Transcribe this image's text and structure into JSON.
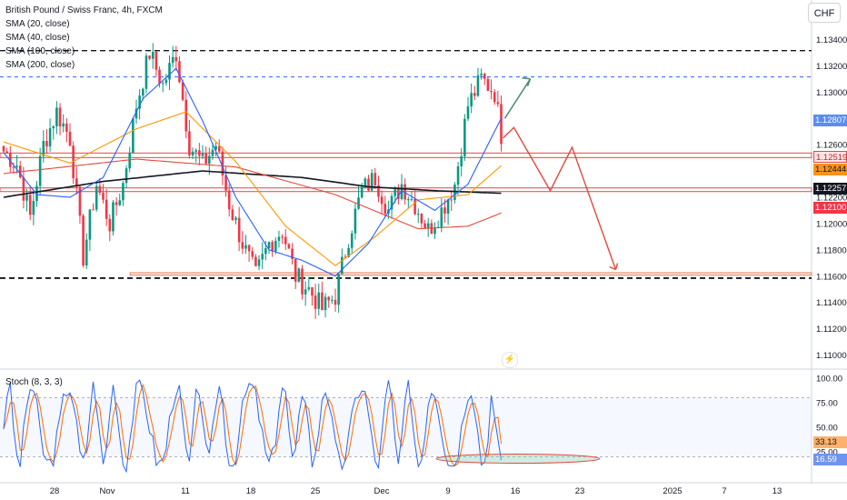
{
  "header": {
    "symbol_line": "British Pound / Swiss Franc, 4h, FXCM",
    "indicators": [
      "SMA (20, close)",
      "SMA (40, close)",
      "SMA (100, close)",
      "SMA (200, close)"
    ],
    "currency_button": "CHF"
  },
  "stoch_title": "Stoch (8, 3, 3)",
  "tags": {
    "t1": "1.12807",
    "t2": "1.12519",
    "t3": "1.12444",
    "t4": "1.12257",
    "t5": "1.12100",
    "s1": "33.13",
    "s2": "16.59"
  },
  "colors": {
    "up": "#089981",
    "down": "#f23645",
    "sma20": "#2962ff",
    "sma40": "#ff9800",
    "sma100": "#e04a3f",
    "sma200": "#131722",
    "stoch_k": "#2962ff",
    "stoch_d": "#ff6d00",
    "arrow_green": "#4e8a6e",
    "arrow_red": "#e04a3f"
  },
  "chart_data": [
    {
      "type": "candlestick",
      "title": "British Pound / Swiss Franc, 4h, FXCM",
      "ylim": [
        1.109,
        1.137
      ],
      "y_ticks": [
        "1.13400",
        "1.13200",
        "1.13000",
        "1.12600",
        "1.12200",
        "1.12000",
        "1.11800",
        "1.11600",
        "1.11400",
        "1.11200",
        "1.11000"
      ],
      "x_ticks": [
        "28",
        "Nov",
        "11",
        "18",
        "25",
        "Dec",
        "9",
        "16",
        "23",
        "2025",
        "7",
        "13"
      ],
      "close_anchors": [
        [
          0,
          1.1255
        ],
        [
          4,
          1.1245
        ],
        [
          8,
          1.1205
        ],
        [
          12,
          1.126
        ],
        [
          16,
          1.1285
        ],
        [
          20,
          1.1265
        ],
        [
          24,
          1.1175
        ],
        [
          28,
          1.123
        ],
        [
          32,
          1.12
        ],
        [
          36,
          1.123
        ],
        [
          40,
          1.129
        ],
        [
          44,
          1.133
        ],
        [
          48,
          1.1305
        ],
        [
          52,
          1.133
        ],
        [
          56,
          1.126
        ],
        [
          60,
          1.1245
        ],
        [
          64,
          1.126
        ],
        [
          68,
          1.1215
        ],
        [
          72,
          1.1185
        ],
        [
          76,
          1.116
        ],
        [
          80,
          1.1185
        ],
        [
          84,
          1.1195
        ],
        [
          88,
          1.116
        ],
        [
          92,
          1.115
        ],
        [
          96,
          1.1135
        ],
        [
          100,
          1.1145
        ],
        [
          104,
          1.119
        ],
        [
          108,
          1.1225
        ],
        [
          112,
          1.1235
        ],
        [
          116,
          1.121
        ],
        [
          120,
          1.123
        ],
        [
          124,
          1.1215
        ],
        [
          128,
          1.1195
        ],
        [
          132,
          1.121
        ],
        [
          136,
          1.123
        ],
        [
          140,
          1.129
        ],
        [
          144,
          1.131
        ],
        [
          148,
          1.13
        ],
        [
          150,
          1.1268
        ]
      ],
      "sma200_anchors": [
        [
          0,
          1.122
        ],
        [
          30,
          1.1232
        ],
        [
          60,
          1.124
        ],
        [
          90,
          1.1235
        ],
        [
          110,
          1.1228
        ],
        [
          130,
          1.1225
        ],
        [
          150,
          1.1223
        ]
      ],
      "sma100_anchors": [
        [
          0,
          1.1238
        ],
        [
          40,
          1.1249
        ],
        [
          70,
          1.1243
        ],
        [
          100,
          1.1222
        ],
        [
          125,
          1.1196
        ],
        [
          140,
          1.1198
        ],
        [
          150,
          1.1208
        ]
      ],
      "sma40_anchors": [
        [
          0,
          1.1262
        ],
        [
          20,
          1.1246
        ],
        [
          40,
          1.1272
        ],
        [
          55,
          1.1285
        ],
        [
          70,
          1.1247
        ],
        [
          85,
          1.1198
        ],
        [
          100,
          1.1168
        ],
        [
          112,
          1.119
        ],
        [
          125,
          1.1218
        ],
        [
          140,
          1.1222
        ],
        [
          150,
          1.1244
        ]
      ],
      "sma20_anchors": [
        [
          0,
          1.1254
        ],
        [
          10,
          1.1222
        ],
        [
          20,
          1.122
        ],
        [
          30,
          1.1235
        ],
        [
          42,
          1.1295
        ],
        [
          52,
          1.1318
        ],
        [
          60,
          1.1278
        ],
        [
          70,
          1.122
        ],
        [
          80,
          1.118
        ],
        [
          90,
          1.1172
        ],
        [
          100,
          1.116
        ],
        [
          110,
          1.1185
        ],
        [
          120,
          1.1225
        ],
        [
          130,
          1.121
        ],
        [
          140,
          1.123
        ],
        [
          145,
          1.1255
        ],
        [
          150,
          1.128
        ]
      ],
      "horizontal_levels": [
        1.13315,
        1.13115,
        1.12519,
        1.12257,
        1.11585
      ],
      "stoch_ylim": [
        0,
        100
      ],
      "stoch_ticks": [
        "100.00",
        "75.00",
        "50.00",
        "25.00"
      ],
      "stoch_levels": [
        80,
        20
      ],
      "stoch_last": {
        "k": 16.59,
        "d": 33.13
      }
    }
  ]
}
